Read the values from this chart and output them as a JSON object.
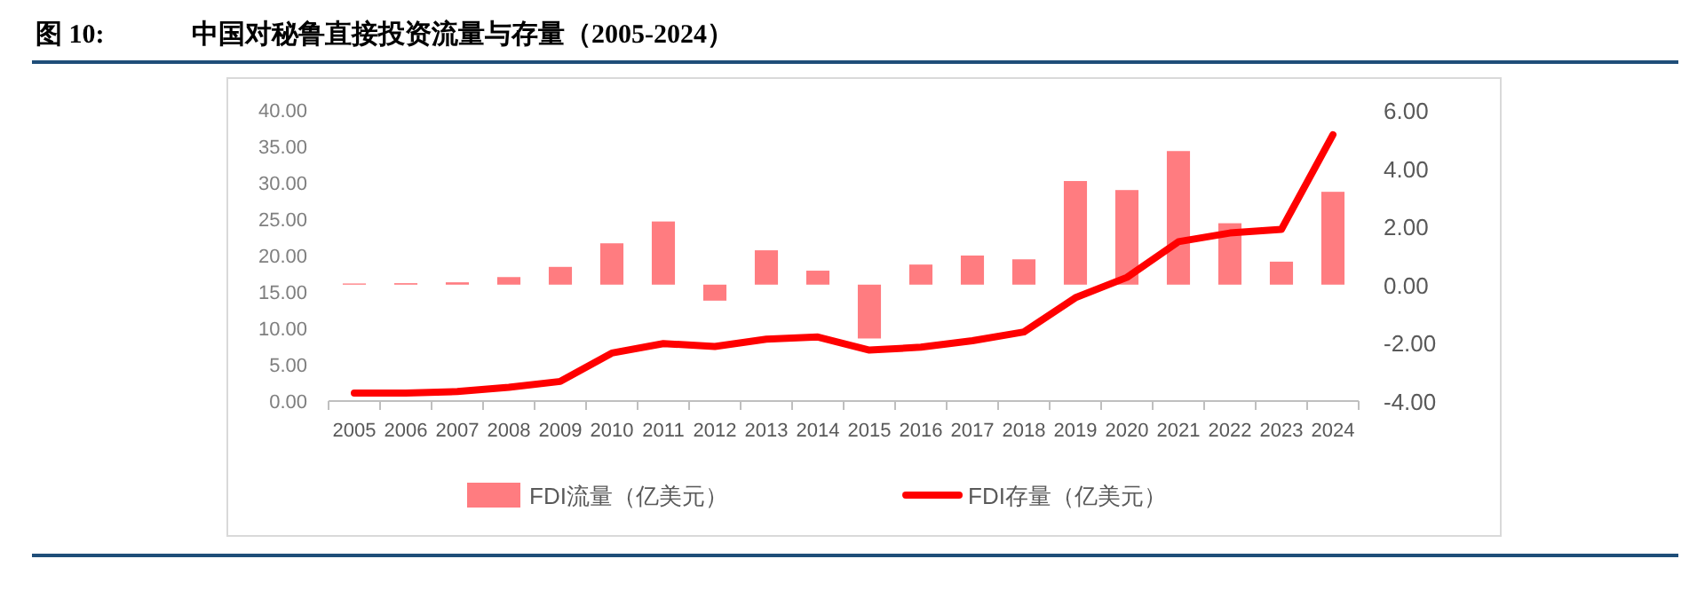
{
  "chart_data": {
    "type": "bar",
    "title": "中国对秘鲁直接投资流量与存量（2005-2024）",
    "annotations": [
      "图 10:"
    ],
    "categories": [
      "2005",
      "2006",
      "2007",
      "2008",
      "2009",
      "2010",
      "2011",
      "2012",
      "2013",
      "2014",
      "2015",
      "2016",
      "2017",
      "2018",
      "2019",
      "2020",
      "2021",
      "2022",
      "2023",
      "2024"
    ],
    "series": [
      {
        "name": "FDI流量（亿美元）",
        "axis": "y2",
        "color": "#ff7c80",
        "values": [
          0.04,
          0.05,
          0.08,
          0.26,
          0.61,
          1.42,
          2.17,
          -0.55,
          1.18,
          0.48,
          -1.85,
          0.69,
          1.0,
          0.87,
          3.56,
          3.25,
          4.59,
          2.11,
          0.79,
          3.19
        ]
      },
      {
        "name": "FDI存量（亿美元）",
        "type": "line",
        "axis": "y",
        "color": "#ff0000",
        "marker": "none",
        "values": [
          1.1,
          1.1,
          1.3,
          1.9,
          2.7,
          6.6,
          7.9,
          7.5,
          8.5,
          8.8,
          7.0,
          7.4,
          8.3,
          9.5,
          14.2,
          17.0,
          21.9,
          23.1,
          23.6,
          36.6
        ]
      }
    ],
    "ylim": [
      0,
      40
    ],
    "yticks": [
      {
        "value": 0,
        "label": "0.00"
      },
      {
        "value": 5,
        "label": "5.00"
      },
      {
        "value": 10,
        "label": "10.00"
      },
      {
        "value": 15,
        "label": "15.00"
      },
      {
        "value": 20,
        "label": "20.00"
      },
      {
        "value": 25,
        "label": "25.00"
      },
      {
        "value": 30,
        "label": "30.00"
      },
      {
        "value": 35,
        "label": "35.00"
      },
      {
        "value": 40,
        "label": "40.00"
      }
    ],
    "y2lim": [
      -4,
      6
    ],
    "y2ticks": [
      {
        "value": -4,
        "label": "-4.00"
      },
      {
        "value": -2,
        "label": "-2.00"
      },
      {
        "value": 0,
        "label": "0.00"
      },
      {
        "value": 2,
        "label": "2.00"
      },
      {
        "value": 4,
        "label": "4.00"
      },
      {
        "value": 6,
        "label": "6.00"
      }
    ],
    "grid": false,
    "legend": "bottom"
  }
}
